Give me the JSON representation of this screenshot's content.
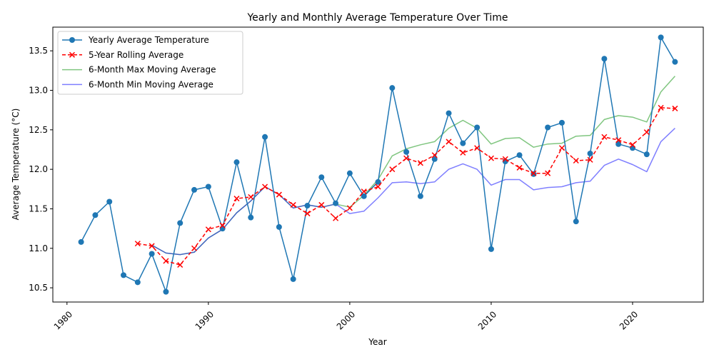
{
  "chart_data": {
    "type": "line",
    "title": "Yearly and Monthly Average Temperature Over Time",
    "xlabel": "Year",
    "ylabel": "Average Temperature (°C)",
    "xlim": [
      1979,
      2025
    ],
    "ylim": [
      10.32,
      13.8
    ],
    "xticks": [
      1980,
      1990,
      2000,
      2010,
      2020
    ],
    "yticks": [
      10.5,
      11.0,
      11.5,
      12.0,
      12.5,
      13.0,
      13.5
    ],
    "ytick_labels": [
      "10.5",
      "11.0",
      "11.5",
      "12.0",
      "12.5",
      "13.0",
      "13.5"
    ],
    "legend_position": "top-left",
    "grid": false,
    "series": [
      {
        "name": "Yearly Average Temperature",
        "color": "#1f77b4",
        "style": "solid",
        "marker": "circle",
        "x": [
          1981,
          1982,
          1983,
          1984,
          1985,
          1986,
          1987,
          1988,
          1989,
          1990,
          1991,
          1992,
          1993,
          1994,
          1995,
          1996,
          1997,
          1998,
          1999,
          2000,
          2001,
          2002,
          2003,
          2004,
          2005,
          2006,
          2007,
          2008,
          2009,
          2010,
          2011,
          2012,
          2013,
          2014,
          2015,
          2016,
          2017,
          2018,
          2019,
          2020,
          2021,
          2022,
          2023
        ],
        "y": [
          11.08,
          11.42,
          11.59,
          10.66,
          10.57,
          10.93,
          10.45,
          11.32,
          11.74,
          11.78,
          11.25,
          12.09,
          11.39,
          12.41,
          11.27,
          10.61,
          11.54,
          11.9,
          11.57,
          11.95,
          11.66,
          11.84,
          13.03,
          12.22,
          11.66,
          12.13,
          12.71,
          12.33,
          12.53,
          10.99,
          12.1,
          12.18,
          11.94,
          12.53,
          12.59,
          11.34,
          12.2,
          13.4,
          12.32,
          12.27,
          12.19,
          13.67,
          13.36
        ]
      },
      {
        "name": "5-Year Rolling Average",
        "color": "#ff0000",
        "style": "dashed",
        "marker": "x",
        "x": [
          1985,
          1986,
          1987,
          1988,
          1989,
          1990,
          1991,
          1992,
          1993,
          1994,
          1995,
          1996,
          1997,
          1998,
          1999,
          2000,
          2001,
          2002,
          2003,
          2004,
          2005,
          2006,
          2007,
          2008,
          2009,
          2010,
          2011,
          2012,
          2013,
          2014,
          2015,
          2016,
          2017,
          2018,
          2019,
          2020,
          2021,
          2022,
          2023
        ],
        "y": [
          11.06,
          11.03,
          10.84,
          10.79,
          11.0,
          11.24,
          11.29,
          11.63,
          11.65,
          11.78,
          11.68,
          11.55,
          11.44,
          11.55,
          11.38,
          11.51,
          11.72,
          11.78,
          12.0,
          12.14,
          12.08,
          12.18,
          12.35,
          12.21,
          12.27,
          12.14,
          12.13,
          12.02,
          11.95,
          11.95,
          12.27,
          12.11,
          12.12,
          12.41,
          12.37,
          12.31,
          12.47,
          12.78,
          12.77
        ]
      },
      {
        "name": "6-Month Max Moving Average",
        "color": "#2ca02c",
        "style": "solid",
        "marker": "none",
        "opacity": 0.6,
        "x": [
          1986,
          1987,
          1988,
          1989,
          1990,
          1991,
          1992,
          1993,
          1994,
          1995,
          1996,
          1997,
          1998,
          1999,
          2000,
          2001,
          2002,
          2003,
          2004,
          2005,
          2006,
          2007,
          2008,
          2009,
          2010,
          2011,
          2012,
          2013,
          2014,
          2015,
          2016,
          2017,
          2018,
          2019,
          2020,
          2021,
          2022,
          2023
        ],
        "y": [
          11.04,
          10.94,
          10.92,
          10.95,
          11.13,
          11.24,
          11.45,
          11.6,
          11.78,
          11.68,
          11.51,
          11.55,
          11.52,
          11.56,
          11.52,
          11.67,
          11.87,
          12.17,
          12.26,
          12.31,
          12.35,
          12.52,
          12.62,
          12.52,
          12.32,
          12.39,
          12.4,
          12.28,
          12.32,
          12.33,
          12.42,
          12.43,
          12.63,
          12.68,
          12.66,
          12.6,
          12.98,
          13.18
        ]
      },
      {
        "name": "6-Month Min Moving Average",
        "color": "#0000ff",
        "style": "solid",
        "marker": "none",
        "opacity": 0.5,
        "x": [
          1986,
          1987,
          1988,
          1989,
          1990,
          1991,
          1992,
          1993,
          1994,
          1995,
          1996,
          1997,
          1998,
          1999,
          2000,
          2001,
          2002,
          2003,
          2004,
          2005,
          2006,
          2007,
          2008,
          2009,
          2010,
          2011,
          2012,
          2013,
          2014,
          2015,
          2016,
          2017,
          2018,
          2019,
          2020,
          2021,
          2022,
          2023
        ],
        "y": [
          11.04,
          10.94,
          10.92,
          10.95,
          11.13,
          11.24,
          11.45,
          11.6,
          11.78,
          11.68,
          11.51,
          11.55,
          11.52,
          11.56,
          11.44,
          11.47,
          11.64,
          11.83,
          11.84,
          11.82,
          11.84,
          12.0,
          12.07,
          12.0,
          11.8,
          11.87,
          11.87,
          11.74,
          11.77,
          11.78,
          11.83,
          11.85,
          12.05,
          12.13,
          12.06,
          11.97,
          12.35,
          12.52
        ]
      }
    ]
  }
}
